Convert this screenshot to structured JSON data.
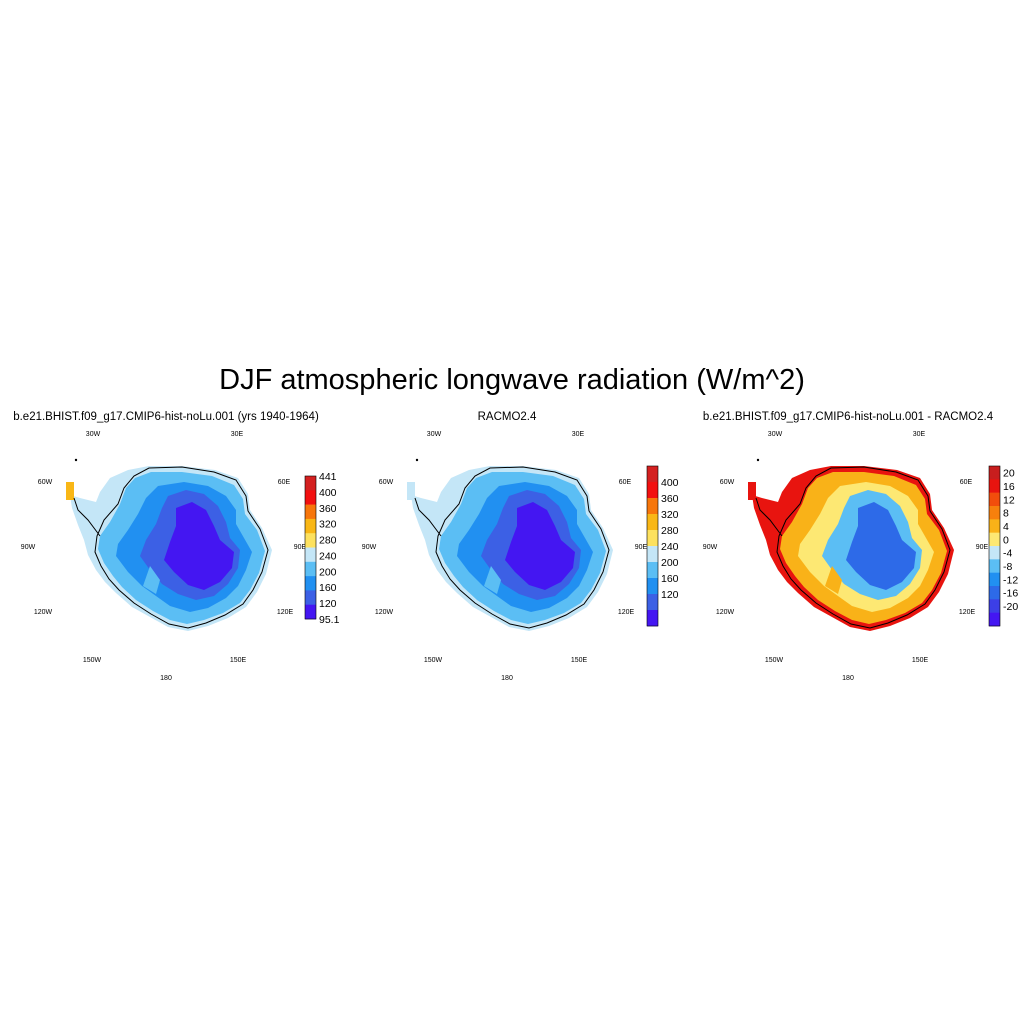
{
  "title": "DJF atmospheric longwave radiation (W/m^2)",
  "panels": [
    {
      "subtitle": "b.e21.BHIST.f09_g17.CMIP6-hist-noLu.001 (yrs 1940-1964)",
      "lon_labels": {
        "w30": "30W",
        "e30": "30E",
        "w60": "60W",
        "e60": "60E",
        "w90": "90W",
        "e90": "90E",
        "w120": "120W",
        "e120": "120E",
        "w150": "150W",
        "e150": "150E",
        "s180": "180"
      },
      "colorbar": {
        "labels": [
          "441",
          "400",
          "360",
          "320",
          "280",
          "240",
          "200",
          "160",
          "120",
          "95.1"
        ],
        "colors": [
          "#d42020",
          "#f21010",
          "#f7760b",
          "#f9b716",
          "#fde15e",
          "#c4e6f7",
          "#5bbef4",
          "#2190f1",
          "#3c60e5",
          "#4416f2"
        ]
      },
      "fields": {
        "coast": "#c4e6f7",
        "margin": "#5bbef4",
        "slope": "#2190f1",
        "plateau": "#3c60e5",
        "dome": "#4416f2"
      }
    },
    {
      "subtitle": "RACMO2.4",
      "lon_labels": {
        "w30": "30W",
        "e30": "30E",
        "w60": "60W",
        "e60": "60E",
        "w90": "90W",
        "e90": "90E",
        "w120": "120W",
        "e120": "120E",
        "w150": "150W",
        "e150": "150E",
        "s180": "180"
      },
      "colorbar": {
        "labels": [
          "400",
          "360",
          "320",
          "280",
          "240",
          "200",
          "160",
          "120"
        ],
        "colors": [
          "#d42020",
          "#f21010",
          "#f7760b",
          "#f9b716",
          "#fde15e",
          "#c4e6f7",
          "#5bbef4",
          "#2190f1",
          "#3c60e5",
          "#4416f2"
        ]
      },
      "fields": {
        "coast": "#c4e6f7",
        "margin": "#5bbef4",
        "slope": "#2190f1",
        "plateau": "#3c60e5",
        "dome": "#4416f2"
      }
    },
    {
      "subtitle": "b.e21.BHIST.f09_g17.CMIP6-hist-noLu.001 - RACMO2.4",
      "lon_labels": {
        "w30": "30W",
        "e30": "30E",
        "w60": "60W",
        "e60": "60E",
        "w90": "90W",
        "e90": "90E",
        "w120": "120W",
        "e120": "120E",
        "w150": "150W",
        "e150": "150E",
        "s180": "180"
      },
      "colorbar": {
        "labels": [
          "20",
          "16",
          "12",
          "8",
          "4",
          "0",
          "-4",
          "-8",
          "-12",
          "-16",
          "-20"
        ],
        "colors": [
          "#c81e1e",
          "#e8140f",
          "#f24d0c",
          "#f7800d",
          "#f9b218",
          "#fde873",
          "#c4e6f7",
          "#5bbef4",
          "#2190f1",
          "#2d6ae8",
          "#3c3fe6",
          "#4416f2"
        ]
      },
      "fields": {
        "coast": "#e8140f",
        "margin": "#f9b218",
        "slope": "#fde873",
        "plateau": "#5bbef4",
        "dome": "#2d6ae8"
      }
    }
  ]
}
